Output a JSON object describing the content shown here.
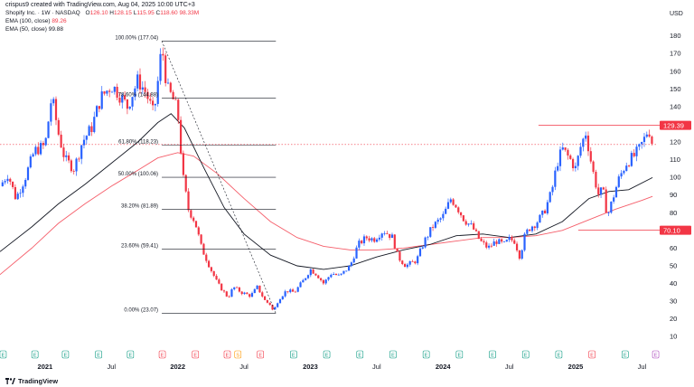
{
  "header": {
    "created": "crispus9 created with TradingView.com, Aug 04, 2025 10:00 UTC+3",
    "symbol": "Shopify Inc. · 1W · NASDAQ",
    "ohlc": {
      "o_label": "O",
      "o": "126.10",
      "h_label": "H",
      "h": "128.15",
      "l_label": "L",
      "l": "115.95",
      "c_label": "C",
      "c": "118.60",
      "vol": "98.33M"
    },
    "ema100": "EMA (100, close)",
    "ema100_val": "89.26",
    "ema50": "EMA (50, close)",
    "ema50_val": "99.88",
    "currency": "USD"
  },
  "colors": {
    "up": "#2962ff",
    "down": "#f23645",
    "ema100": "#f23645",
    "ema50": "#131722",
    "fib": "#131722",
    "resistance": "#f23645"
  },
  "chart_data": {
    "type": "candlestick",
    "title": "Shopify Inc. · 1W · NASDAQ",
    "ylim": [
      5,
      188
    ],
    "y_ticks": [
      10,
      20,
      30,
      40,
      50,
      60,
      70,
      80,
      90,
      100,
      110,
      120,
      130,
      140,
      150,
      160,
      170,
      180
    ],
    "x_ticks": [
      "2021",
      "Jul",
      "2022",
      "Jul",
      "2023",
      "Jul",
      "2024",
      "Jul",
      "2025",
      "Jul"
    ],
    "x_tick_pos": [
      2021.0,
      2021.5,
      2022.0,
      2022.5,
      2023.0,
      2023.5,
      2024.0,
      2024.5,
      2025.0,
      2025.5
    ],
    "xlim": [
      2020.66,
      2025.62
    ],
    "price_path": [
      [
        2020.66,
        95
      ],
      [
        2020.72,
        102
      ],
      [
        2020.78,
        88
      ],
      [
        2020.85,
        100
      ],
      [
        2020.92,
        115
      ],
      [
        2021.0,
        118
      ],
      [
        2021.05,
        146
      ],
      [
        2021.1,
        125
      ],
      [
        2021.15,
        110
      ],
      [
        2021.22,
        105
      ],
      [
        2021.28,
        120
      ],
      [
        2021.35,
        128
      ],
      [
        2021.42,
        145
      ],
      [
        2021.5,
        152
      ],
      [
        2021.55,
        148
      ],
      [
        2021.62,
        140
      ],
      [
        2021.7,
        155
      ],
      [
        2021.76,
        148
      ],
      [
        2021.82,
        135
      ],
      [
        2021.86,
        160
      ],
      [
        2021.88,
        175
      ],
      [
        2021.92,
        150
      ],
      [
        2021.96,
        145
      ],
      [
        2022.0,
        137
      ],
      [
        2022.04,
        100
      ],
      [
        2022.08,
        82
      ],
      [
        2022.13,
        75
      ],
      [
        2022.18,
        60
      ],
      [
        2022.25,
        48
      ],
      [
        2022.3,
        40
      ],
      [
        2022.38,
        32
      ],
      [
        2022.42,
        38
      ],
      [
        2022.48,
        35
      ],
      [
        2022.55,
        33
      ],
      [
        2022.6,
        38
      ],
      [
        2022.66,
        30
      ],
      [
        2022.7,
        28
      ],
      [
        2022.72,
        24
      ],
      [
        2022.76,
        31
      ],
      [
        2022.82,
        36
      ],
      [
        2022.88,
        35
      ],
      [
        2022.95,
        42
      ],
      [
        2023.0,
        48
      ],
      [
        2023.05,
        45
      ],
      [
        2023.1,
        40
      ],
      [
        2023.16,
        46
      ],
      [
        2023.22,
        44
      ],
      [
        2023.3,
        50
      ],
      [
        2023.36,
        62
      ],
      [
        2023.42,
        66
      ],
      [
        2023.48,
        65
      ],
      [
        2023.55,
        70
      ],
      [
        2023.62,
        66
      ],
      [
        2023.66,
        55
      ],
      [
        2023.72,
        50
      ],
      [
        2023.8,
        53
      ],
      [
        2023.86,
        64
      ],
      [
        2023.92,
        72
      ],
      [
        2024.0,
        78
      ],
      [
        2024.06,
        88
      ],
      [
        2024.1,
        84
      ],
      [
        2024.16,
        76
      ],
      [
        2024.22,
        72
      ],
      [
        2024.28,
        64
      ],
      [
        2024.34,
        60
      ],
      [
        2024.4,
        64
      ],
      [
        2024.46,
        62
      ],
      [
        2024.5,
        65
      ],
      [
        2024.54,
        64
      ],
      [
        2024.58,
        55
      ],
      [
        2024.62,
        68
      ],
      [
        2024.66,
        72
      ],
      [
        2024.7,
        74
      ],
      [
        2024.76,
        80
      ],
      [
        2024.82,
        92
      ],
      [
        2024.86,
        108
      ],
      [
        2024.9,
        116
      ],
      [
        2024.96,
        110
      ],
      [
        2025.0,
        105
      ],
      [
        2025.04,
        118
      ],
      [
        2025.08,
        126
      ],
      [
        2025.1,
        115
      ],
      [
        2025.14,
        100
      ],
      [
        2025.18,
        88
      ],
      [
        2025.2,
        95
      ],
      [
        2025.24,
        78
      ],
      [
        2025.28,
        88
      ],
      [
        2025.32,
        98
      ],
      [
        2025.38,
        108
      ],
      [
        2025.44,
        112
      ],
      [
        2025.48,
        116
      ],
      [
        2025.52,
        122
      ],
      [
        2025.55,
        128
      ],
      [
        2025.58,
        118.6
      ]
    ],
    "series": [
      {
        "name": "EMA (100, close)",
        "values": [
          [
            2020.66,
            45
          ],
          [
            2020.9,
            60
          ],
          [
            2021.1,
            74
          ],
          [
            2021.3,
            85
          ],
          [
            2021.5,
            95
          ],
          [
            2021.7,
            104
          ],
          [
            2021.85,
            111
          ],
          [
            2022.0,
            114
          ],
          [
            2022.12,
            112
          ],
          [
            2022.3,
            102
          ],
          [
            2022.5,
            88
          ],
          [
            2022.7,
            75
          ],
          [
            2022.9,
            66
          ],
          [
            2023.1,
            61
          ],
          [
            2023.3,
            59
          ],
          [
            2023.5,
            59
          ],
          [
            2023.7,
            60
          ],
          [
            2023.9,
            62
          ],
          [
            2024.1,
            64
          ],
          [
            2024.3,
            66
          ],
          [
            2024.5,
            66
          ],
          [
            2024.7,
            67
          ],
          [
            2024.9,
            70
          ],
          [
            2025.1,
            76
          ],
          [
            2025.3,
            82
          ],
          [
            2025.5,
            87
          ],
          [
            2025.58,
            89.26
          ]
        ]
      },
      {
        "name": "EMA (50, close)",
        "values": [
          [
            2020.66,
            58
          ],
          [
            2020.9,
            72
          ],
          [
            2021.1,
            85
          ],
          [
            2021.3,
            96
          ],
          [
            2021.5,
            108
          ],
          [
            2021.7,
            120
          ],
          [
            2021.85,
            131
          ],
          [
            2021.95,
            136
          ],
          [
            2022.05,
            128
          ],
          [
            2022.2,
            105
          ],
          [
            2022.35,
            83
          ],
          [
            2022.5,
            68
          ],
          [
            2022.7,
            56
          ],
          [
            2022.9,
            50
          ],
          [
            2023.1,
            48
          ],
          [
            2023.3,
            50
          ],
          [
            2023.5,
            55
          ],
          [
            2023.7,
            59
          ],
          [
            2023.9,
            62
          ],
          [
            2024.1,
            67
          ],
          [
            2024.3,
            68
          ],
          [
            2024.5,
            66
          ],
          [
            2024.7,
            68
          ],
          [
            2024.9,
            75
          ],
          [
            2025.1,
            88
          ],
          [
            2025.25,
            92
          ],
          [
            2025.4,
            93
          ],
          [
            2025.58,
            99.88
          ]
        ]
      }
    ],
    "fibonacci": {
      "x_start": 2021.88,
      "x_end": 2022.74,
      "levels": [
        {
          "label": "100.00% (177.04)",
          "value": 177.04
        },
        {
          "label": "78.60% (144.88)",
          "value": 144.88
        },
        {
          "label": "61.80% (118.23)",
          "value": 118.23
        },
        {
          "label": "50.00% (100.06)",
          "value": 100.06
        },
        {
          "label": "38.20% (81.89)",
          "value": 81.89
        },
        {
          "label": "23.60% (59.41)",
          "value": 59.41
        },
        {
          "label": "0.00% (23.07)",
          "value": 23.07
        }
      ]
    },
    "lines": [
      {
        "value": 129.39,
        "label": "129.39",
        "x_start": 2024.72
      },
      {
        "value": 70.1,
        "label": "70.10",
        "x_start": 2025.02
      }
    ],
    "dotted_line": 118.6,
    "event_markers": [
      {
        "t": 2020.68,
        "label": "E",
        "color": "#089981"
      },
      {
        "t": 2020.92,
        "label": "E",
        "color": "#089981"
      },
      {
        "t": 2021.15,
        "label": "E",
        "color": "#089981"
      },
      {
        "t": 2021.4,
        "label": "E",
        "color": "#089981"
      },
      {
        "t": 2021.64,
        "label": "E",
        "color": "#089981"
      },
      {
        "t": 2021.88,
        "label": "E",
        "color": "#f23645"
      },
      {
        "t": 2022.13,
        "label": "E",
        "color": "#f23645"
      },
      {
        "t": 2022.37,
        "label": "E",
        "color": "#f23645"
      },
      {
        "t": 2022.45,
        "label": "S",
        "color": "#ff9800"
      },
      {
        "t": 2022.62,
        "label": "E",
        "color": "#f23645"
      },
      {
        "t": 2022.87,
        "label": "E",
        "color": "#089981"
      },
      {
        "t": 2023.12,
        "label": "E",
        "color": "#089981"
      },
      {
        "t": 2023.37,
        "label": "E",
        "color": "#089981"
      },
      {
        "t": 2023.62,
        "label": "E",
        "color": "#089981"
      },
      {
        "t": 2023.87,
        "label": "E",
        "color": "#089981"
      },
      {
        "t": 2024.12,
        "label": "E",
        "color": "#089981"
      },
      {
        "t": 2024.37,
        "label": "E",
        "color": "#089981"
      },
      {
        "t": 2024.62,
        "label": "E",
        "color": "#089981"
      },
      {
        "t": 2024.87,
        "label": "E",
        "color": "#089981"
      },
      {
        "t": 2025.12,
        "label": "E",
        "color": "#f23645"
      },
      {
        "t": 2025.37,
        "label": "E",
        "color": "#089981"
      },
      {
        "t": 2025.6,
        "label": "E",
        "color": "#ab47bc"
      }
    ]
  },
  "footer": {
    "brand": "TradingView"
  }
}
